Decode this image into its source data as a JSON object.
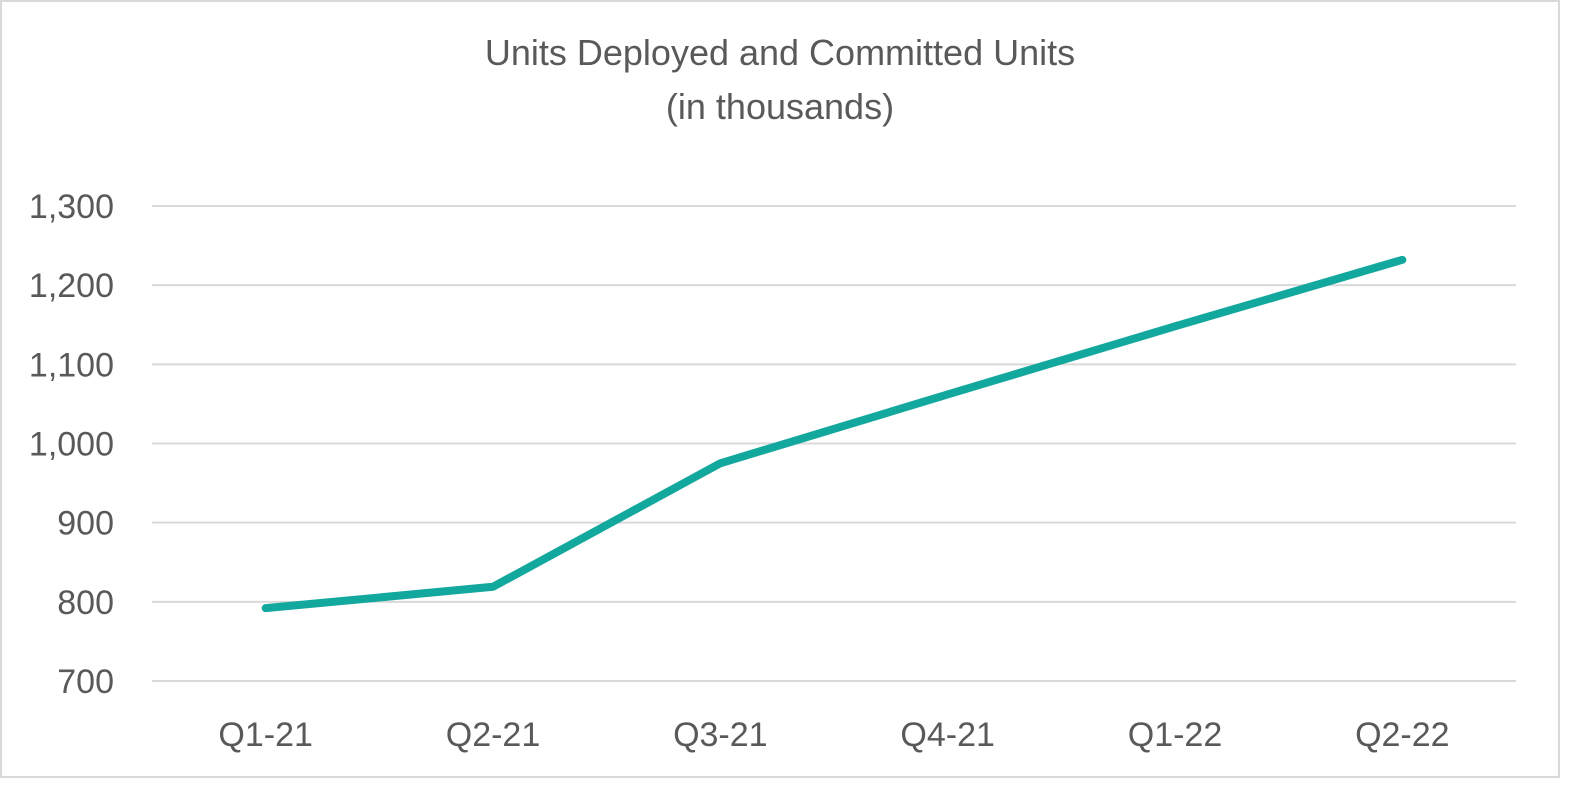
{
  "chart_data": {
    "type": "line",
    "title": "Units Deployed and Committed Units",
    "subtitle": "(in thousands)",
    "xlabel": "",
    "ylabel": "",
    "categories": [
      "Q1-21",
      "Q2-21",
      "Q3-21",
      "Q4-21",
      "Q1-22",
      "Q2-22"
    ],
    "series": [
      {
        "values": [
          792,
          819,
          975,
          1062,
          1148,
          1232
        ]
      }
    ],
    "ylim": [
      700,
      1300
    ],
    "yticks": [
      700,
      800,
      900,
      1000,
      1100,
      1200,
      1300
    ],
    "ytick_labels": [
      "700",
      "800",
      "900",
      "1,000",
      "1,100",
      "1,200",
      "1,300"
    ],
    "grid": true,
    "legend": "none",
    "colors": {
      "line": "#13a89e",
      "grid": "#d9d9d9",
      "text": "#595959"
    }
  }
}
